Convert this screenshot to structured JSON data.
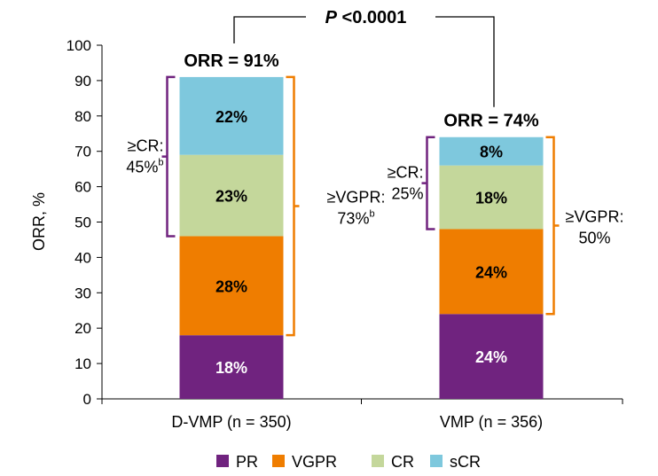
{
  "chart_data": {
    "type": "bar",
    "stacked": true,
    "ylabel": "ORR, %",
    "ylim": [
      0,
      100
    ],
    "yticks": [
      0,
      10,
      20,
      30,
      40,
      50,
      60,
      70,
      80,
      90,
      100
    ],
    "categories": [
      "D-VMP (n = 350)",
      "VMP (n = 356)"
    ],
    "series": [
      {
        "name": "PR",
        "color": "#70237f",
        "label_color": "#ffffff",
        "values": [
          18,
          24
        ],
        "labels": [
          "18%",
          "24%"
        ]
      },
      {
        "name": "VGPR",
        "color": "#ef7d00",
        "label_color": "#000000",
        "values": [
          28,
          24
        ],
        "labels": [
          "28%",
          "24%"
        ]
      },
      {
        "name": "CR",
        "color": "#c4d79b",
        "label_color": "#000000",
        "values": [
          23,
          18
        ],
        "labels": [
          "23%",
          "18%"
        ]
      },
      {
        "name": "sCR",
        "color": "#7ec8dd",
        "label_color": "#000000",
        "values": [
          22,
          8
        ],
        "labels": [
          "22%",
          "8%"
        ]
      }
    ],
    "orr_labels": [
      "ORR = 91%",
      "ORR = 74%"
    ],
    "p_value": {
      "italic": "P",
      "text": " <0.0001"
    },
    "annotations": [
      {
        "bar": 0,
        "type": "cr",
        "from": 46,
        "to": 91,
        "lines": [
          "≥CR:",
          "45%"
        ],
        "sup": "b",
        "color": "#70237f"
      },
      {
        "bar": 0,
        "type": "vgpr",
        "from": 18,
        "to": 91,
        "lines": [
          "≥VGPR:",
          "73%"
        ],
        "sup": "b",
        "color": "#ef7d00"
      },
      {
        "bar": 1,
        "type": "cr",
        "from": 48,
        "to": 74,
        "lines": [
          "≥CR:",
          "25%"
        ],
        "sup": "",
        "color": "#70237f"
      },
      {
        "bar": 1,
        "type": "vgpr",
        "from": 24,
        "to": 74,
        "lines": [
          "≥VGPR:",
          "50%"
        ],
        "sup": "",
        "color": "#ef7d00"
      }
    ],
    "legend": [
      "PR",
      "VGPR",
      "CR",
      "sCR"
    ],
    "legend_position": "bottom"
  }
}
